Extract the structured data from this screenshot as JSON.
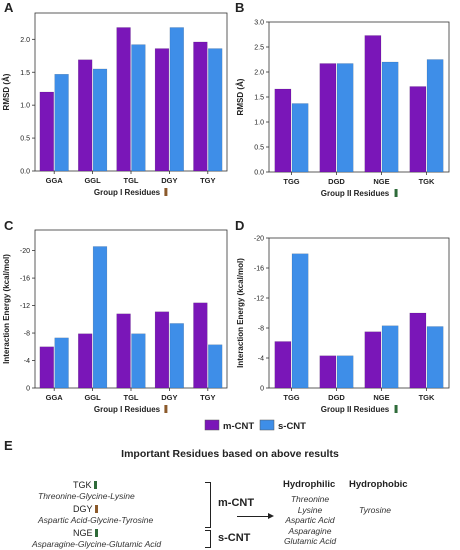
{
  "chart_data": [
    {
      "panel": "A",
      "type": "bar",
      "categories": [
        "GGA",
        "GGL",
        "TGL",
        "DGY",
        "TGY"
      ],
      "series": [
        {
          "name": "m-CNT",
          "values": [
            1.2,
            1.69,
            2.18,
            1.86,
            1.96
          ]
        },
        {
          "name": "s-CNT",
          "values": [
            1.47,
            1.55,
            1.92,
            2.18,
            1.86
          ]
        }
      ],
      "title": "",
      "xlabel": "Group I Residues",
      "ylabel": "RMSD (Å)",
      "ylim": [
        0,
        2.4
      ],
      "yticks": [
        "0.0",
        "0.5",
        "1.0",
        "1.5",
        "2.0"
      ],
      "ytick_values": [
        0,
        0.5,
        1,
        1.5,
        2
      ]
    },
    {
      "panel": "B",
      "type": "bar",
      "categories": [
        "TGG",
        "DGD",
        "NGE",
        "TGK"
      ],
      "series": [
        {
          "name": "m-CNT",
          "values": [
            1.66,
            2.17,
            2.73,
            1.71
          ]
        },
        {
          "name": "s-CNT",
          "values": [
            1.37,
            2.17,
            2.2,
            2.25
          ]
        }
      ],
      "title": "",
      "xlabel": "Group II Residues",
      "ylabel": "RMSD (Å)",
      "ylim": [
        0,
        3.0
      ],
      "yticks": [
        "0.0",
        "0.5",
        "1.0",
        "1.5",
        "2.0",
        "2.5",
        "3.0"
      ],
      "ytick_values": [
        0,
        0.5,
        1,
        1.5,
        2,
        2.5,
        3
      ]
    },
    {
      "panel": "C",
      "type": "bar",
      "categories": [
        "GGA",
        "GGL",
        "TGL",
        "DGY",
        "TGY"
      ],
      "series": [
        {
          "name": "m-CNT",
          "values": [
            -6,
            -7.9,
            -10.8,
            -11.1,
            -12.4
          ]
        },
        {
          "name": "s-CNT",
          "values": [
            -7.3,
            -20.6,
            -7.9,
            -9.4,
            -6.3
          ]
        }
      ],
      "title": "",
      "xlabel": "Group I Residues",
      "ylabel": "Interaction Energy (kcal/mol)",
      "ylim": [
        0,
        -23
      ],
      "yticks": [
        "0",
        "-4",
        "-8",
        "-12",
        "-16",
        "-20"
      ],
      "ytick_values": [
        0,
        -4,
        -8,
        -12,
        -16,
        -20
      ]
    },
    {
      "panel": "D",
      "type": "bar",
      "categories": [
        "TGG",
        "DGD",
        "NGE",
        "TGK"
      ],
      "series": [
        {
          "name": "m-CNT",
          "values": [
            -6.2,
            -4.3,
            -7.5,
            -10
          ]
        },
        {
          "name": "s-CNT",
          "values": [
            -17.9,
            -4.3,
            -8.3,
            -8.2
          ]
        }
      ],
      "title": "",
      "xlabel": "Group II Residues",
      "ylabel": "Interaction Energy (kcal/mol)",
      "ylim": [
        0,
        -20
      ],
      "yticks": [
        "0",
        "-4",
        "-8",
        "-12",
        "-16",
        "-20"
      ],
      "ytick_values": [
        0,
        -4,
        -8,
        -12,
        -16,
        -20
      ]
    }
  ],
  "legend": {
    "placement": "bottom-center",
    "items": [
      "m-CNT",
      "s-CNT"
    ]
  },
  "colors": {
    "m_cnt": "#7a16b8",
    "s_cnt": "#3e8ee8",
    "group1_chip": "#8b5a2b",
    "group2_chip": "#2f6b3a"
  },
  "summary": {
    "letter": "E",
    "title": "Important Residues based on above results",
    "m_cnt_label": "m-CNT",
    "s_cnt_label": "s-CNT",
    "residues": [
      {
        "code": "TGK",
        "name": "Threonine-Glycine-Lysine"
      },
      {
        "code": "DGY",
        "name": "Aspartic Acid-Glycine-Tyrosine"
      },
      {
        "code": "NGE",
        "name": "Asparagine-Glycine-Glutamic Acid"
      }
    ],
    "hydrophilic_label": "Hydrophilic",
    "hydrophilic": [
      "Threonine",
      "Lysine",
      "Aspartic Acid",
      "Asparagine",
      "Glutamic Acid"
    ],
    "hydrophobic_label": "Hydrophobic",
    "hydrophobic": [
      "Tyrosine"
    ]
  }
}
